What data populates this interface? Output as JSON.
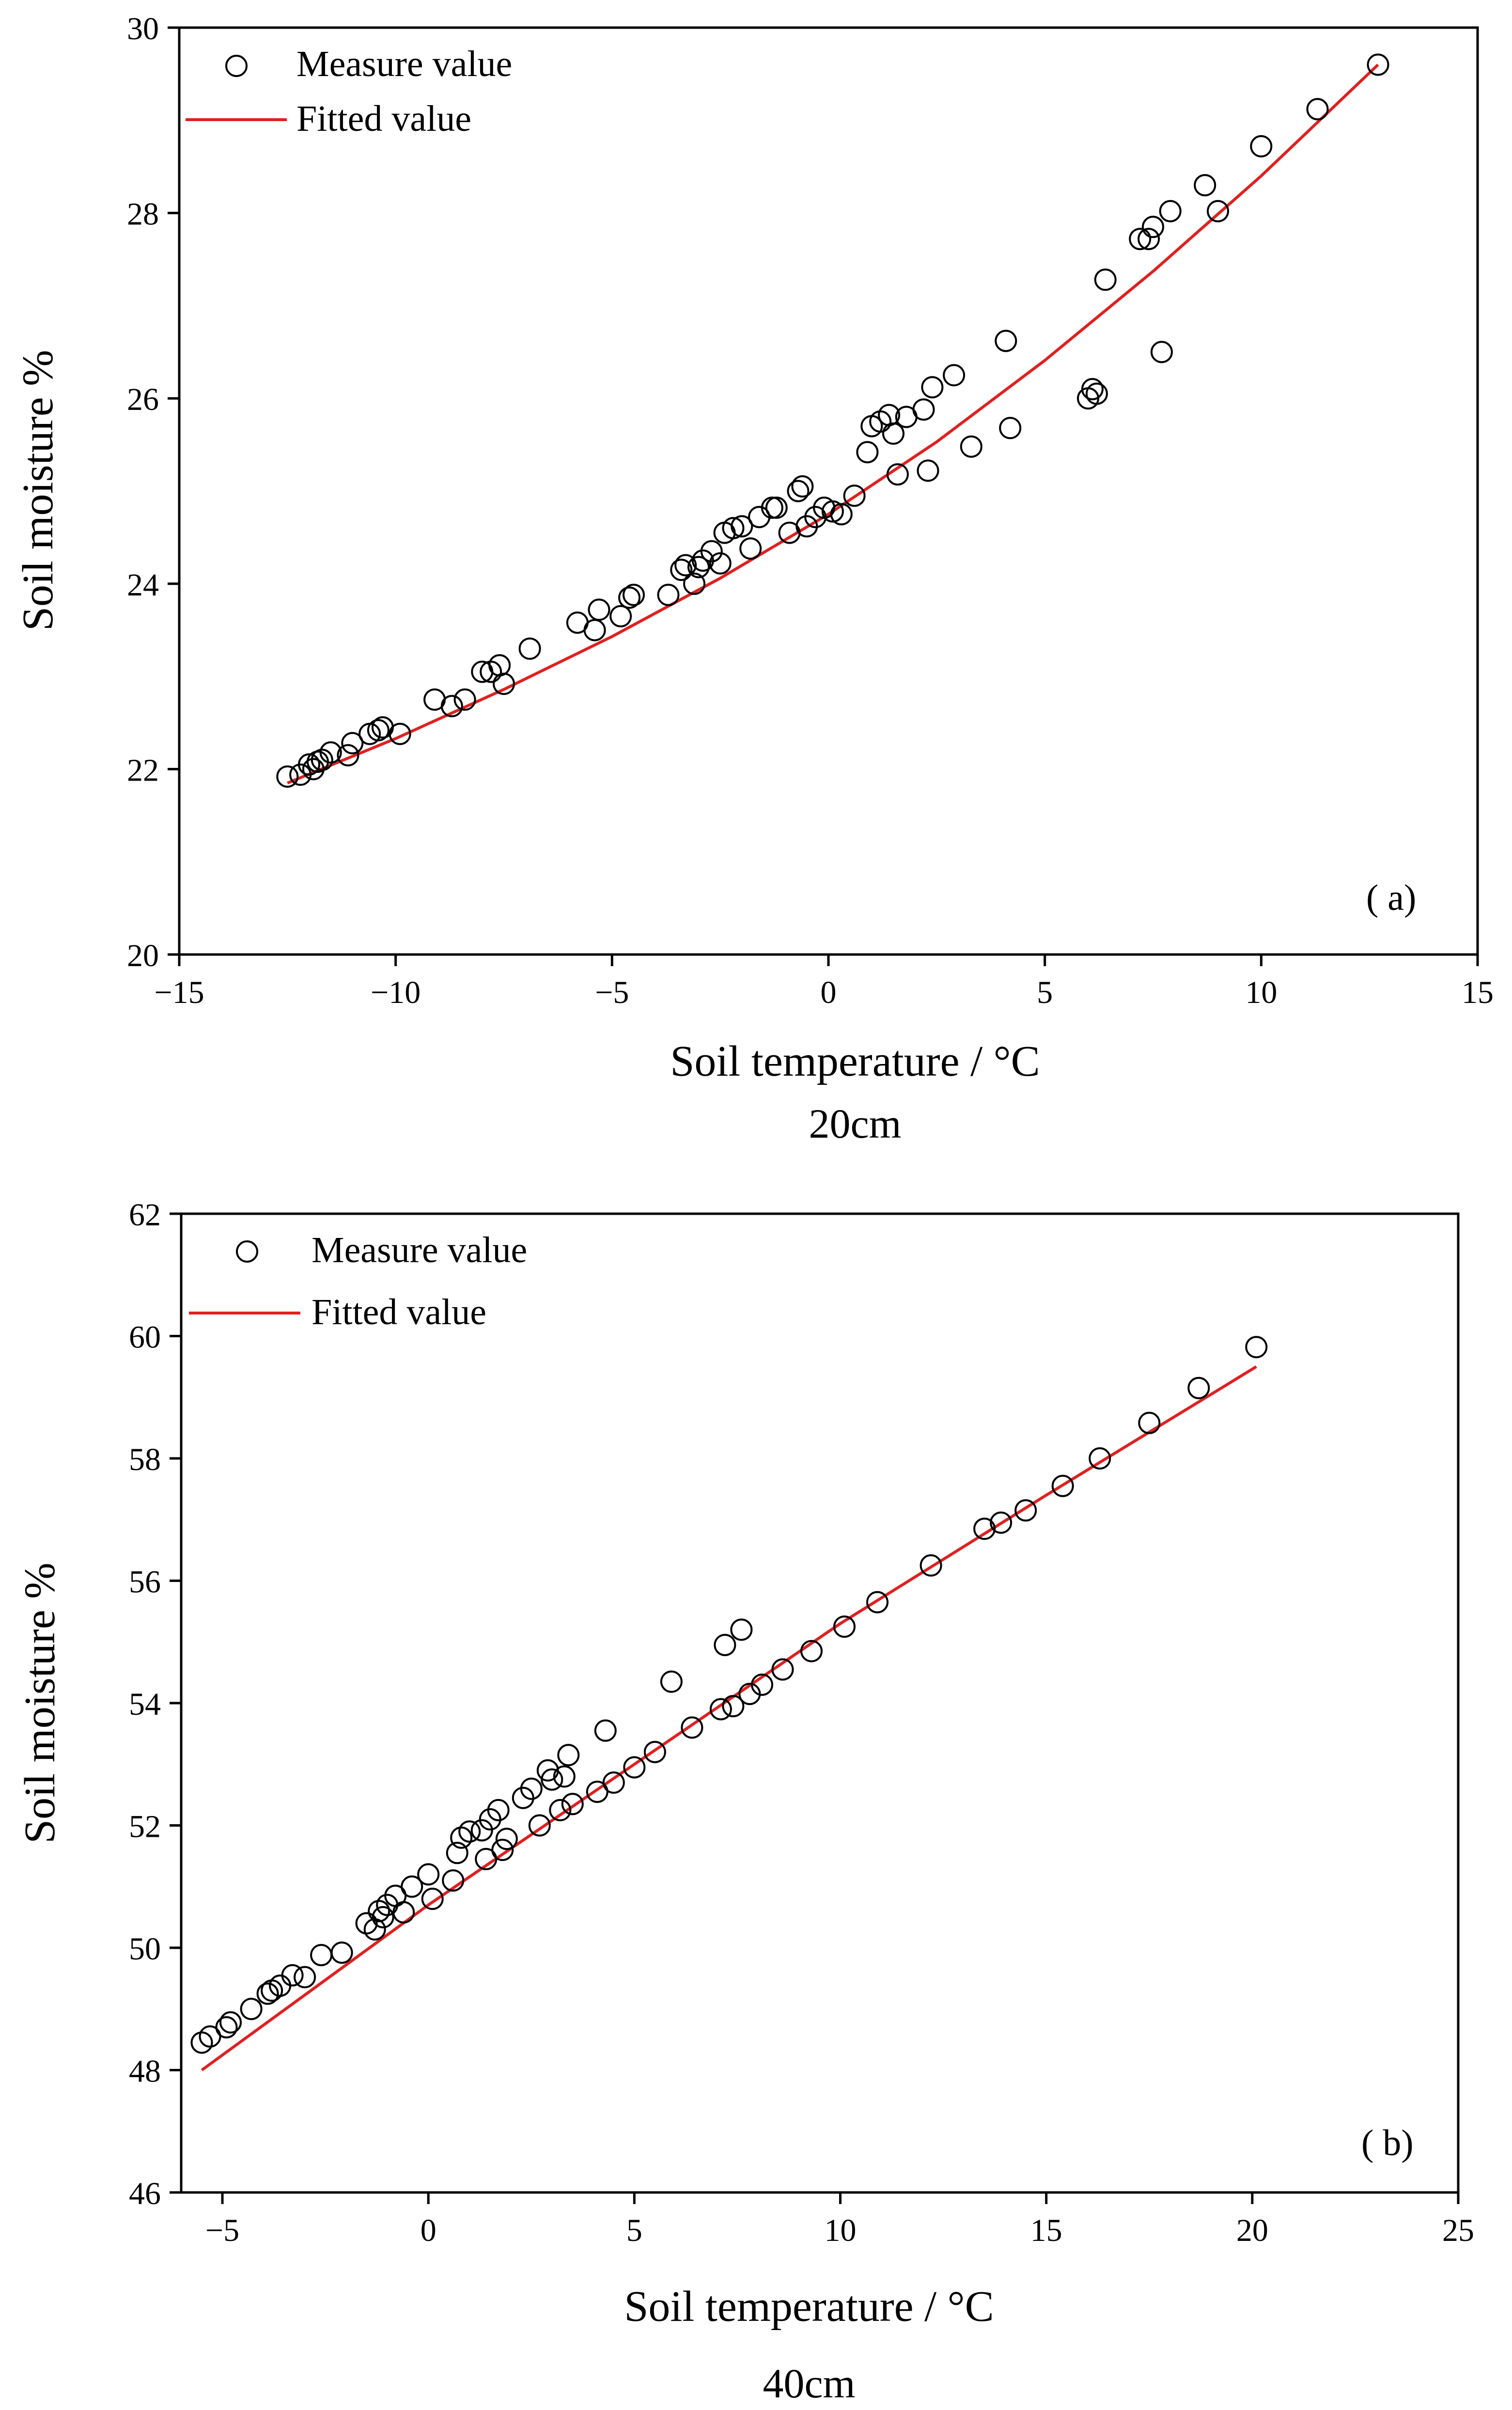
{
  "chart_data": [
    {
      "type": "scatter",
      "panel_label": "( a)",
      "caption": "20cm",
      "xlabel": "Soil temperature / °C",
      "ylabel": "Soil moisture %",
      "xlim": [
        -15,
        15
      ],
      "ylim": [
        20,
        30
      ],
      "xticks": [
        -15,
        -10,
        -5,
        0,
        5,
        10,
        15
      ],
      "yticks": [
        20,
        22,
        24,
        26,
        28,
        30
      ],
      "xtick_labels": [
        "−15",
        "−10",
        "−5",
        "0",
        "5",
        "10",
        "15"
      ],
      "ytick_labels": [
        "20",
        "22",
        "24",
        "26",
        "28",
        "30"
      ],
      "legend": {
        "position": "top-left",
        "measured_label": "Measure value",
        "fitted_label": "Fitted value"
      },
      "colors": {
        "fitted": "#e02020",
        "markers": "#000000"
      },
      "series": [
        {
          "name": "Measure value",
          "kind": "markers",
          "points": [
            [
              -12.5,
              21.92
            ],
            [
              -12.2,
              21.94
            ],
            [
              -12.0,
              22.05
            ],
            [
              -11.9,
              22.0
            ],
            [
              -11.8,
              22.08
            ],
            [
              -11.7,
              22.1
            ],
            [
              -11.5,
              22.18
            ],
            [
              -11.1,
              22.15
            ],
            [
              -11.0,
              22.28
            ],
            [
              -10.6,
              22.38
            ],
            [
              -10.4,
              22.42
            ],
            [
              -10.3,
              22.45
            ],
            [
              -9.9,
              22.38
            ],
            [
              -9.1,
              22.75
            ],
            [
              -8.7,
              22.68
            ],
            [
              -8.4,
              22.75
            ],
            [
              -8.0,
              23.05
            ],
            [
              -7.8,
              23.05
            ],
            [
              -7.6,
              23.12
            ],
            [
              -7.5,
              22.92
            ],
            [
              -6.9,
              23.3
            ],
            [
              -5.8,
              23.58
            ],
            [
              -5.4,
              23.5
            ],
            [
              -5.3,
              23.72
            ],
            [
              -4.8,
              23.65
            ],
            [
              -4.6,
              23.85
            ],
            [
              -4.5,
              23.88
            ],
            [
              -3.7,
              23.88
            ],
            [
              -3.4,
              24.15
            ],
            [
              -3.3,
              24.2
            ],
            [
              -3.1,
              24.0
            ],
            [
              -3.0,
              24.18
            ],
            [
              -2.9,
              24.25
            ],
            [
              -2.7,
              24.35
            ],
            [
              -2.5,
              24.22
            ],
            [
              -2.4,
              24.55
            ],
            [
              -2.2,
              24.6
            ],
            [
              -2.0,
              24.62
            ],
            [
              -1.8,
              24.38
            ],
            [
              -1.6,
              24.72
            ],
            [
              -1.3,
              24.82
            ],
            [
              -1.2,
              24.82
            ],
            [
              -0.9,
              24.55
            ],
            [
              -0.7,
              25.0
            ],
            [
              -0.6,
              25.05
            ],
            [
              -0.5,
              24.62
            ],
            [
              -0.3,
              24.72
            ],
            [
              -0.1,
              24.82
            ],
            [
              0.1,
              24.78
            ],
            [
              0.3,
              24.75
            ],
            [
              0.6,
              24.95
            ],
            [
              0.9,
              25.42
            ],
            [
              1.0,
              25.7
            ],
            [
              1.2,
              25.75
            ],
            [
              1.4,
              25.82
            ],
            [
              1.5,
              25.62
            ],
            [
              1.6,
              25.18
            ],
            [
              1.8,
              25.8
            ],
            [
              2.2,
              25.88
            ],
            [
              2.3,
              25.22
            ],
            [
              2.4,
              26.12
            ],
            [
              2.9,
              26.25
            ],
            [
              3.3,
              25.48
            ],
            [
              4.1,
              26.62
            ],
            [
              4.2,
              25.68
            ],
            [
              6.0,
              26.0
            ],
            [
              6.1,
              26.1
            ],
            [
              6.2,
              26.05
            ],
            [
              6.4,
              27.28
            ],
            [
              7.2,
              27.72
            ],
            [
              7.4,
              27.72
            ],
            [
              7.5,
              27.85
            ],
            [
              7.7,
              26.5
            ],
            [
              7.9,
              28.02
            ],
            [
              8.7,
              28.3
            ],
            [
              9.0,
              28.02
            ],
            [
              10.0,
              28.72
            ],
            [
              11.3,
              29.12
            ],
            [
              12.7,
              29.6
            ]
          ]
        },
        {
          "name": "Fitted value",
          "kind": "line",
          "x": [
            -12.5,
            -10,
            -7.5,
            -5,
            -2.5,
            0,
            2.5,
            5,
            7.5,
            10,
            12.7
          ],
          "y": [
            21.85,
            22.33,
            22.86,
            23.43,
            24.06,
            24.75,
            25.53,
            26.41,
            27.37,
            28.4,
            29.6
          ]
        }
      ]
    },
    {
      "type": "scatter",
      "panel_label": "( b)",
      "caption": "40cm",
      "xlabel": "Soil temperature / °C",
      "ylabel": "Soil moisture %",
      "xlim": [
        -6,
        25
      ],
      "ylim": [
        46,
        62
      ],
      "xticks": [
        -5,
        0,
        5,
        10,
        15,
        20,
        25
      ],
      "yticks": [
        46,
        48,
        50,
        52,
        54,
        56,
        58,
        60,
        62
      ],
      "xtick_labels": [
        "−5",
        "0",
        "5",
        "10",
        "15",
        "20",
        "25"
      ],
      "ytick_labels": [
        "46",
        "48",
        "50",
        "52",
        "54",
        "56",
        "58",
        "60",
        "62"
      ],
      "legend": {
        "position": "top-left",
        "measured_label": "Measure value",
        "fitted_label": "Fitted value"
      },
      "colors": {
        "fitted": "#e02020",
        "markers": "#000000"
      },
      "series": [
        {
          "name": "Measure value",
          "kind": "markers",
          "points": [
            [
              -5.5,
              48.45
            ],
            [
              -5.3,
              48.55
            ],
            [
              -4.9,
              48.7
            ],
            [
              -4.8,
              48.78
            ],
            [
              -4.3,
              49.0
            ],
            [
              -3.9,
              49.25
            ],
            [
              -3.8,
              49.3
            ],
            [
              -3.6,
              49.38
            ],
            [
              -3.3,
              49.55
            ],
            [
              -3.0,
              49.52
            ],
            [
              -2.6,
              49.88
            ],
            [
              -2.1,
              49.92
            ],
            [
              -1.5,
              50.4
            ],
            [
              -1.3,
              50.3
            ],
            [
              -1.2,
              50.6
            ],
            [
              -1.1,
              50.5
            ],
            [
              -1.0,
              50.7
            ],
            [
              -0.8,
              50.85
            ],
            [
              -0.6,
              50.58
            ],
            [
              -0.4,
              51.0
            ],
            [
              0.0,
              51.2
            ],
            [
              0.1,
              50.8
            ],
            [
              0.6,
              51.1
            ],
            [
              0.7,
              51.55
            ],
            [
              0.8,
              51.8
            ],
            [
              1.0,
              51.9
            ],
            [
              1.3,
              51.92
            ],
            [
              1.4,
              51.45
            ],
            [
              1.5,
              52.1
            ],
            [
              1.7,
              52.25
            ],
            [
              1.8,
              51.6
            ],
            [
              1.9,
              51.78
            ],
            [
              2.3,
              52.45
            ],
            [
              2.5,
              52.6
            ],
            [
              2.7,
              52.0
            ],
            [
              2.9,
              52.9
            ],
            [
              3.0,
              52.75
            ],
            [
              3.2,
              52.25
            ],
            [
              3.3,
              52.8
            ],
            [
              3.4,
              53.15
            ],
            [
              3.5,
              52.35
            ],
            [
              4.1,
              52.55
            ],
            [
              4.3,
              53.55
            ],
            [
              4.5,
              52.7
            ],
            [
              5.0,
              52.95
            ],
            [
              5.5,
              53.2
            ],
            [
              5.9,
              54.35
            ],
            [
              6.4,
              53.6
            ],
            [
              7.1,
              53.9
            ],
            [
              7.2,
              54.95
            ],
            [
              7.4,
              53.95
            ],
            [
              7.6,
              55.2
            ],
            [
              7.8,
              54.15
            ],
            [
              8.1,
              54.3
            ],
            [
              8.6,
              54.55
            ],
            [
              9.3,
              54.85
            ],
            [
              10.1,
              55.25
            ],
            [
              10.9,
              55.65
            ],
            [
              12.2,
              56.25
            ],
            [
              13.5,
              56.85
            ],
            [
              13.9,
              56.95
            ],
            [
              14.5,
              57.15
            ],
            [
              15.4,
              57.55
            ],
            [
              16.3,
              58.0
            ],
            [
              17.5,
              58.58
            ],
            [
              18.7,
              59.15
            ],
            [
              20.1,
              59.82
            ]
          ]
        },
        {
          "name": "Fitted value",
          "kind": "line",
          "x": [
            -5.5,
            0,
            5,
            10,
            15,
            20.1
          ],
          "y": [
            48.0,
            50.7,
            53.0,
            55.3,
            57.4,
            59.5
          ]
        }
      ]
    }
  ]
}
